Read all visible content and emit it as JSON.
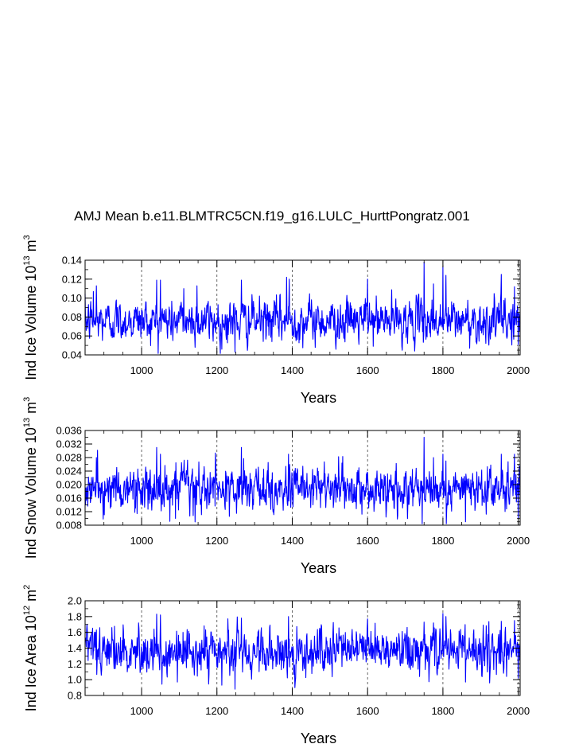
{
  "title": "AMJ Mean b.e11.BLMTRC5CN.f19_g16.LULC_HurttPongratz.001",
  "line_color": "#0000ff",
  "chart_data": [
    {
      "type": "line",
      "xlabel": "Years",
      "ylabel_main": "Ind Ice Volume 10",
      "ylabel_exp": "13",
      "ylabel_unit": " m",
      "ylabel_unit_exp": "3",
      "xlim": [
        850,
        2005
      ],
      "ylim": [
        0.04,
        0.14
      ],
      "xticks": [
        1000,
        1200,
        1400,
        1600,
        1800,
        2000
      ],
      "xtick_labels": [
        "1000",
        "1200",
        "1400",
        "1600",
        "1800",
        "2000"
      ],
      "yticks": [
        0.04,
        0.06,
        0.08,
        0.1,
        0.12,
        0.14
      ],
      "ytick_labels": [
        "0.04",
        "0.06",
        "0.08",
        "0.10",
        "0.12",
        "0.14"
      ],
      "ygrid_minor": 0.01,
      "vlines": [
        1000,
        1200,
        1400,
        1600,
        1800,
        2000
      ],
      "mean": 0.076,
      "sd": 0.011,
      "spikes": [
        [
          872,
          0.107
        ],
        [
          880,
          0.113
        ],
        [
          1040,
          0.119
        ],
        [
          1050,
          0.119
        ],
        [
          1112,
          0.11
        ],
        [
          1147,
          0.113
        ],
        [
          1213,
          0.046
        ],
        [
          1248,
          0.043
        ],
        [
          1265,
          0.119
        ],
        [
          1385,
          0.122
        ],
        [
          1392,
          0.12
        ],
        [
          1600,
          0.12
        ],
        [
          1750,
          0.138
        ],
        [
          1775,
          0.115
        ],
        [
          1800,
          0.133
        ],
        [
          1808,
          0.124
        ],
        [
          1955,
          0.125
        ],
        [
          1990,
          0.112
        ],
        [
          2000,
          0.051
        ]
      ]
    },
    {
      "type": "line",
      "xlabel": "Years",
      "ylabel_main": "Ind Snow Volume 10",
      "ylabel_exp": "13",
      "ylabel_unit": " m",
      "ylabel_unit_exp": "3",
      "xlim": [
        850,
        2005
      ],
      "ylim": [
        0.008,
        0.036
      ],
      "xticks": [
        1000,
        1200,
        1400,
        1600,
        1800,
        2000
      ],
      "xtick_labels": [
        "1000",
        "1200",
        "1400",
        "1600",
        "1800",
        "2000"
      ],
      "yticks": [
        0.008,
        0.012,
        0.016,
        0.02,
        0.024,
        0.028,
        0.032,
        0.036
      ],
      "ytick_labels": [
        "0.008",
        "0.012",
        "0.016",
        "0.020",
        "0.024",
        "0.028",
        "0.032",
        "0.036"
      ],
      "ygrid_minor": 0.002,
      "vlines": [
        1000,
        1200,
        1400,
        1600,
        1800,
        2000
      ],
      "mean": 0.0185,
      "sd": 0.0033,
      "spikes": [
        [
          880,
          0.028
        ],
        [
          1040,
          0.031
        ],
        [
          1050,
          0.029
        ],
        [
          1090,
          0.01
        ],
        [
          1265,
          0.031
        ],
        [
          1390,
          0.029
        ],
        [
          1745,
          0.008
        ],
        [
          1750,
          0.034
        ],
        [
          1775,
          0.028
        ],
        [
          1800,
          0.029
        ],
        [
          1808,
          0.027
        ],
        [
          1860,
          0.009
        ],
        [
          1955,
          0.029
        ],
        [
          1990,
          0.029
        ],
        [
          2000,
          0.01
        ]
      ]
    },
    {
      "type": "line",
      "xlabel": "Years",
      "ylabel_main": "Ind Ice Area 10",
      "ylabel_exp": "12",
      "ylabel_unit": " m",
      "ylabel_unit_exp": "2",
      "xlim": [
        850,
        2005
      ],
      "ylim": [
        0.8,
        2.0
      ],
      "xticks": [
        1000,
        1200,
        1400,
        1600,
        1800,
        2000
      ],
      "xtick_labels": [
        "1000",
        "1200",
        "1400",
        "1600",
        "1800",
        "2000"
      ],
      "yticks": [
        0.8,
        1.0,
        1.2,
        1.4,
        1.6,
        1.8,
        2.0
      ],
      "ytick_labels": [
        "0.8",
        "1.0",
        "1.2",
        "1.4",
        "1.6",
        "1.8",
        "2.0"
      ],
      "ygrid_minor": 0.1,
      "vlines": [
        1000,
        1200,
        1400,
        1600,
        1800,
        2000
      ],
      "mean": 1.36,
      "sd": 0.14,
      "spikes": [
        [
          880,
          1.63
        ],
        [
          1040,
          1.83
        ],
        [
          1050,
          1.82
        ],
        [
          1095,
          0.97
        ],
        [
          1110,
          1.6
        ],
        [
          1213,
          0.93
        ],
        [
          1248,
          0.88
        ],
        [
          1265,
          1.78
        ],
        [
          1390,
          1.8
        ],
        [
          1600,
          1.77
        ],
        [
          1750,
          1.73
        ],
        [
          1775,
          1.72
        ],
        [
          1800,
          1.84
        ],
        [
          1808,
          1.8
        ],
        [
          1860,
          0.97
        ],
        [
          1955,
          1.74
        ],
        [
          1990,
          1.75
        ],
        [
          2000,
          1.02
        ]
      ]
    }
  ]
}
